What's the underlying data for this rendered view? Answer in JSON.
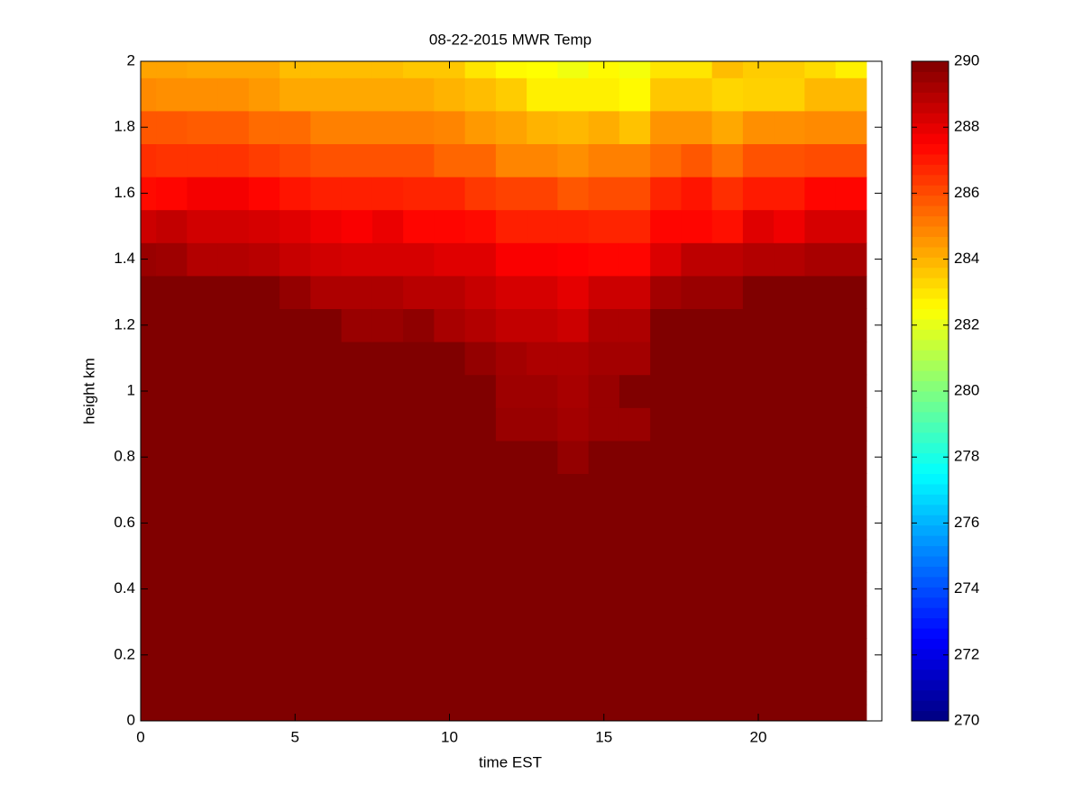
{
  "chart_data": {
    "type": "heatmap",
    "title": "08-22-2015 MWR Temp",
    "x_label": "time EST",
    "y_label": "height km",
    "colormap": "jet",
    "x": [
      0,
      1,
      2,
      3,
      4,
      5,
      6,
      7,
      8,
      9,
      10,
      11,
      12,
      13,
      14,
      15,
      16,
      17,
      18,
      19,
      20,
      21,
      22,
      23
    ],
    "y": [
      0,
      0.1,
      0.2,
      0.3,
      0.4,
      0.5,
      0.6,
      0.7,
      0.8,
      0.9,
      1,
      1.1,
      1.2,
      1.3,
      1.4,
      1.5,
      1.6,
      1.7,
      1.8,
      1.9,
      2
    ],
    "z": [
      [
        290,
        290,
        290,
        290,
        290,
        290,
        290,
        290,
        290,
        290,
        290,
        290,
        290,
        290,
        290,
        290,
        290,
        290,
        290,
        290,
        290,
        290,
        290,
        290
      ],
      [
        290,
        290,
        290,
        290,
        290,
        290,
        290,
        290,
        290,
        290,
        290,
        290,
        290,
        290,
        290,
        290,
        290,
        290,
        290,
        290,
        290,
        290,
        290,
        290
      ],
      [
        290,
        290,
        290,
        290,
        290,
        290,
        290,
        290,
        290,
        290,
        290,
        290,
        290,
        290,
        290,
        290,
        290,
        290,
        290,
        290,
        290,
        290,
        290,
        290
      ],
      [
        290,
        290,
        290,
        290,
        290,
        290,
        290,
        290,
        290,
        290,
        290,
        290,
        290,
        290,
        290,
        290,
        290,
        290,
        290,
        290,
        290,
        290,
        290,
        290
      ],
      [
        290,
        290,
        290,
        290,
        290,
        290,
        290,
        290,
        290,
        290,
        290,
        290,
        290,
        290,
        290,
        290,
        290,
        290,
        290,
        290,
        290,
        290,
        290,
        290
      ],
      [
        290,
        290,
        290,
        290,
        290,
        290,
        290,
        290,
        290,
        290,
        290,
        290,
        290,
        290,
        290,
        290,
        290,
        290,
        290,
        290,
        290,
        290,
        290,
        290
      ],
      [
        290,
        290,
        290,
        290,
        290,
        290,
        290,
        290,
        290,
        290,
        290,
        290,
        290,
        290,
        290,
        290,
        290,
        290,
        290,
        290,
        290,
        290,
        290,
        290
      ],
      [
        290,
        290,
        290,
        290,
        290,
        290,
        290,
        290,
        290,
        290,
        290,
        290,
        290,
        290,
        290,
        290,
        290,
        290,
        290,
        290,
        290,
        290,
        290,
        290
      ],
      [
        290,
        290,
        290,
        290,
        290,
        290,
        290,
        290,
        290,
        290,
        290,
        290,
        290,
        290,
        289.6,
        290,
        290,
        290,
        290,
        290,
        290,
        290,
        290,
        290
      ],
      [
        290,
        290,
        290,
        290,
        290,
        290,
        290,
        290,
        290,
        290,
        290,
        290,
        289.5,
        289.5,
        289.3,
        289.5,
        289.5,
        290,
        290,
        290,
        290,
        290,
        290,
        290
      ],
      [
        290,
        290,
        290,
        290,
        290,
        290,
        290,
        290,
        290,
        290,
        290,
        290,
        289.4,
        289.4,
        289.2,
        289.5,
        290,
        290,
        290,
        290,
        290,
        290,
        290,
        290
      ],
      [
        290,
        290,
        290,
        290,
        290,
        290,
        290,
        290,
        290,
        290,
        290,
        289.6,
        289.3,
        289.1,
        289.1,
        289.3,
        289.3,
        290,
        290,
        290,
        290,
        290,
        290,
        290
      ],
      [
        290,
        290,
        290,
        290,
        290,
        290,
        290,
        289.5,
        289.5,
        289.7,
        289.2,
        289,
        288.7,
        288.7,
        288.5,
        289.1,
        289.1,
        290,
        290,
        290,
        290,
        290,
        290,
        290
      ],
      [
        290,
        290,
        290,
        290,
        290,
        289.6,
        289.1,
        289.1,
        289.1,
        288.9,
        288.9,
        288.6,
        288.3,
        288.3,
        288,
        288.5,
        288.5,
        289.3,
        289.5,
        289.5,
        290,
        290,
        290,
        290
      ],
      [
        289.5,
        289.4,
        289,
        289,
        288.9,
        288.6,
        288.4,
        288.3,
        288.3,
        288.3,
        288.1,
        288.1,
        287.6,
        287.6,
        287.5,
        287.4,
        287.4,
        288.2,
        288.8,
        288.8,
        289,
        289,
        289.2,
        289.2
      ],
      [
        288.5,
        288.7,
        288.4,
        288.4,
        288.3,
        288.1,
        287.8,
        287.6,
        287.9,
        287.4,
        287.4,
        287.3,
        286.9,
        286.9,
        286.9,
        286.8,
        286.8,
        287.4,
        287.4,
        287.2,
        288.1,
        287.8,
        288.3,
        288.3
      ],
      [
        287.3,
        287.4,
        287.7,
        287.7,
        287.4,
        287.1,
        286.9,
        286.9,
        286.9,
        286.8,
        286.8,
        286.4,
        286.2,
        286.2,
        285.8,
        286,
        286,
        286.8,
        287.1,
        286.6,
        287,
        287,
        287.4,
        287.4
      ],
      [
        286.6,
        286.5,
        286.5,
        286.5,
        286.3,
        286.1,
        285.9,
        285.9,
        285.9,
        285.9,
        285.5,
        285.5,
        284.9,
        284.9,
        284.7,
        285,
        285,
        285.4,
        285.8,
        285.3,
        285.9,
        285.9,
        286,
        286
      ],
      [
        285.8,
        285.8,
        285.7,
        285.7,
        285.4,
        285.4,
        285,
        285,
        285,
        285,
        284.9,
        284.5,
        284.3,
        284,
        283.9,
        284.1,
        283.7,
        284.6,
        284.6,
        284.2,
        284.7,
        284.7,
        284.8,
        284.8
      ],
      [
        284.8,
        284.7,
        284.7,
        284.7,
        284.5,
        284.2,
        284.2,
        284.2,
        284.2,
        284.2,
        284,
        283.8,
        283.5,
        282.8,
        282.8,
        282.8,
        282.6,
        283.6,
        283.6,
        283.3,
        283.4,
        283.4,
        283.9,
        283.9
      ],
      [
        284.3,
        284.3,
        284.2,
        284.2,
        284.2,
        283.8,
        283.8,
        283.8,
        283.8,
        283.6,
        283.6,
        283,
        282.6,
        282.5,
        282.2,
        282.6,
        282.3,
        283,
        283,
        283.8,
        283.5,
        283.5,
        283.2,
        282.8
      ]
    ],
    "xlim": [
      0,
      24
    ],
    "xticks": [
      0,
      5,
      10,
      15,
      20
    ],
    "ylim": [
      0,
      2
    ],
    "yticks": [
      0,
      0.2,
      0.4,
      0.6,
      0.8,
      1,
      1.2,
      1.4,
      1.6,
      1.8,
      2
    ],
    "clim": [
      270,
      290
    ],
    "cticks": [
      270,
      272,
      274,
      276,
      278,
      280,
      282,
      284,
      286,
      288,
      290
    ]
  }
}
